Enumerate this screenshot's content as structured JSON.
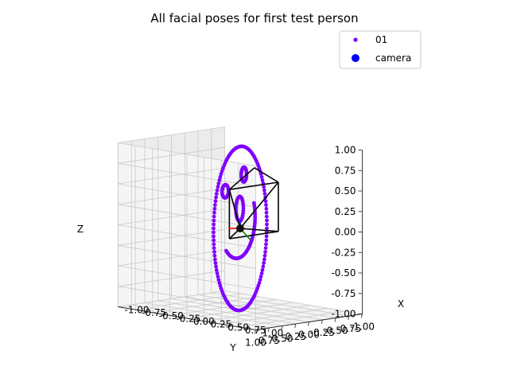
{
  "chart_data": {
    "type": "scatter",
    "projection": "3d",
    "title": "All facial poses for first test person",
    "xlabel": "X",
    "ylabel": "Y",
    "zlabel": "Z",
    "xlim": [
      -1.0,
      1.0
    ],
    "ylim": [
      -1.0,
      1.0
    ],
    "zlim": [
      -1.0,
      1.0
    ],
    "ticks": [
      "-1.00",
      "-0.75",
      "-0.50",
      "-0.25",
      "0.00",
      "0.25",
      "0.50",
      "0.75",
      "1.00"
    ],
    "grid": true,
    "legend": {
      "location": "upper-right",
      "entries": [
        {
          "label": "01",
          "color": "#7f00ff",
          "marker": "small-dot"
        },
        {
          "label": "camera",
          "color": "#0000ff",
          "marker": "large-dot"
        }
      ]
    },
    "series": [
      {
        "name": "01",
        "color": "#7f00ff",
        "shapes": [
          {
            "part": "face-outline",
            "kind": "ellipse",
            "center": [
              0,
              0,
              0
            ],
            "ry": 0.5,
            "rz": 1.0,
            "start_deg": 0,
            "end_deg": 360,
            "points": 130
          },
          {
            "part": "left-eye",
            "kind": "ellipse",
            "center": [
              0,
              -0.07,
              0.65
            ],
            "ry": 0.05,
            "rz": 0.09,
            "start_deg": 0,
            "end_deg": 360,
            "points": 26
          },
          {
            "part": "right-eye",
            "kind": "ellipse",
            "center": [
              0,
              0.28,
              0.48
            ],
            "ry": 0.06,
            "rz": 0.08,
            "start_deg": 0,
            "end_deg": 360,
            "points": 26
          },
          {
            "part": "nose",
            "kind": "ellipse",
            "center": [
              0,
              0.01,
              0.24
            ],
            "ry": 0.07,
            "rz": 0.15,
            "start_deg": 0,
            "end_deg": 360,
            "points": 30
          },
          {
            "part": "mouth",
            "kind": "arc",
            "center": [
              0,
              0.05,
              0.12
            ],
            "ry": 0.33,
            "rz": 0.48,
            "start_deg": 160,
            "end_deg": 310,
            "points": 45
          }
        ]
      },
      {
        "name": "camera",
        "color": "#0000ff",
        "points": [
          {
            "x": 0,
            "y": 0,
            "z": 0
          }
        ]
      }
    ],
    "camera_axes": [
      {
        "axis": "x",
        "color": "#ff0000",
        "to": [
          0,
          0.22,
          0.02
        ]
      },
      {
        "axis": "y",
        "color": "#008000",
        "to": [
          0.15,
          0,
          -0.12
        ]
      },
      {
        "axis": "z",
        "color": "#0000ff",
        "to": [
          0,
          0,
          0.08
        ]
      }
    ],
    "camera_frustum": {
      "color": "#000000",
      "apex": [
        0,
        0,
        0
      ],
      "corners": [
        [
          0.4,
          -0.2,
          0.6
        ],
        [
          0.4,
          0.72,
          0.6
        ],
        [
          0.4,
          0.72,
          0.0
        ],
        [
          0.4,
          -0.2,
          0.0
        ]
      ],
      "roof_peak": [
        0.4,
        0.25,
        0.82
      ]
    }
  }
}
